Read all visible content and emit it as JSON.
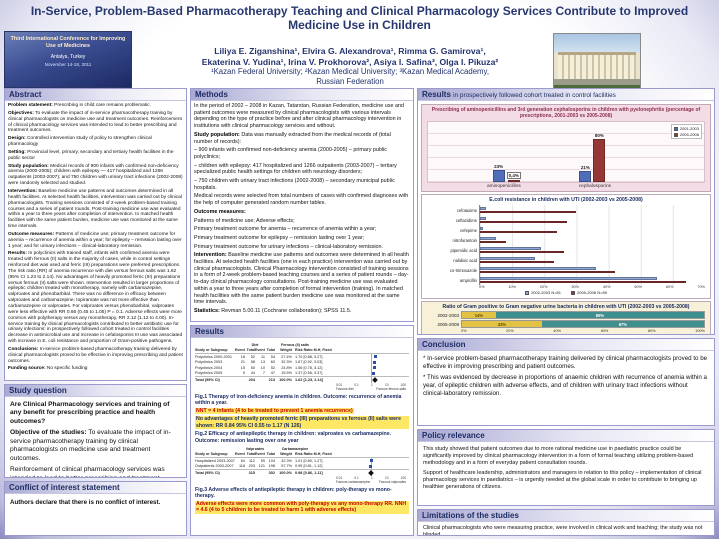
{
  "title": "In-Service, Problem-Based Pharmacotherapy Teaching and Clinical Pharmacology Services Contribute to Improved Medicine Use in Children",
  "badge": {
    "line1": "Third International Conference for Improving Use of Medicines",
    "line2": "Antalya, Turkey",
    "line3": "November 14-18, 2011"
  },
  "authors": {
    "line1": "Liliya E. Ziganshina¹, Elvira G. Alexandrova¹, Rimma G. Gamirova¹,",
    "line2": "Ekaterina V. Yudina¹, Irina V. Prokhorova², Asiya I. Safina³, Olga I. Pikuza²",
    "line3": "¹Kazan Federal University; ²Kazan Medical University; ³Kazan Medical Academy,",
    "line4": "Russian Federation"
  },
  "abstract": {
    "header": "Abstract",
    "items": [
      {
        "label": "Problem statement:",
        "text": "Prescribing in child care remains problematic."
      },
      {
        "label": "Objectives:",
        "text": "To evaluate the impact of in-service pharmacotherapy training by clinical pharmacologists on medicine use and treatment outcomes. Reinforcement of clinical pharmacology services was intended to lead to better prescribing and treatment outcomes."
      },
      {
        "label": "Design:",
        "text": "Controlled intervention study of policy to strengthen clinical pharmacology"
      },
      {
        "label": "Setting:",
        "text": "Provincial level, primary, secondary and tertiary health facilities in the public sector"
      },
      {
        "label": "Study population:",
        "text": "Medical records of 900 infants with confirmed non-deficiency anemia (2000-2005); children with epilepsy — 417 hospitalized and 1266 outpatients (2003-2007); and 750 children with urinary tract infections (2002-2008) were randomly selected and studied."
      },
      {
        "label": "Intervention:",
        "text": "Baseline medicine use patterns and outcomes determined in all health facilities. At selected health facilities, intervention was carried out by clinical pharmacologists. Training sessions consisted of 2-week problem-based training courses and a series of patient rounds. Post-training medicine use was evaluated within a year to three years after completion of intervention. In matched health facilities with the same patient burden, medicine use was monitored at the same time intervals."
      },
      {
        "label": "Outcome measures:",
        "text": "Patterns of medicine use; primary treatment outcome for anemia – recurrence of anemia within a year; for epilepsy – remission lasting over 1 year; and for urinary infections – clinical-laboratory remission."
      },
      {
        "label": "Results:",
        "text": "In polyclinics with trained staff, infants with confirmed anemia were treated with ferrous (II) salts in the majority of cases, while in control settings reinforced diet was used and ferric (III) preparations were preferred prescriptions. The risk ratio (RR) of anemia recurrence with diet versus ferrous salts was 1.62 (95% CI 1.23 to 2.14). No advantages of heavily promoted ferric (III) preparations versus ferrous (II) salts were shown. Intervention resulted in larger proportions of epileptic children treated with monotherapy, namely with carbamazepine, valproates and phenobarbital. There was no difference in efficacy between valproates and carbamazepine; topiramate was not more effective than carbamazepine or valproates. For valproates versus phenobarbital, valproates were less effective with RR 0.66 (0.45 to 1.05) P = 0.1. Adverse effects were more common with polytherapy versus any monotherapy, RR 2.12 (1.12 to 4.00). In-service training by clinical pharmacologists contributed to better antibiotic use for urinary infections: in prospectively followed cohort treated in control facilities decrease in antimicrobial use and increase in cefalosporins III use was associated with increase in E. coli resistance and proportion of Gram-positive pathogens."
      },
      {
        "label": "Conclusions:",
        "text": "In-service problem-based pharmacotherapy training delivered by clinical pharmacologists proved to be effective in improving prescribing and patient outcomes."
      },
      {
        "label": "Funding source:",
        "text": "No specific funding"
      }
    ]
  },
  "study_question": {
    "header": "Study question",
    "q": "Are Clinical Pharmacology services and training of any benefit for prescribing practice and health outcomes?",
    "objective_label": "Objective of the studies:",
    "objective": "To evaluate the impact of in-service pharmacotherapy training by clinical pharmacologists on medicine use and treatment outcomes.",
    "note": "Reinforcement of clinical pharmacology services was intended to lead to better prescribing and treatment outcomes."
  },
  "conflict": {
    "header": "Conflict of interest statement",
    "text": "Authors declare that there is no conflict of interest."
  },
  "methods": {
    "header": "Methods",
    "items": [
      {
        "label": "",
        "text": "In the period of 2002 – 2008 in Kazan, Tatarstan, Russian Federation, medicine use and patient outcomes were measured by clinical pharmacologists with various intervals depending on the type of practice before and after clinical pharmacology intervention in institutions with clinical pharmacology services and without."
      },
      {
        "label": "Study population:",
        "text": "Data was manually extracted from the medical records of (total number of records):"
      },
      {
        "label": "",
        "text": "– 900 infants with confirmed non-deficiency anemia (2000-2005) – primary public polyclinics;"
      },
      {
        "label": "",
        "text": "– children with epilepsy: 417 hospitalized and 1266 outpatients (2003-2007) – tertiary specialized public health settings for children with neurology disorders;"
      },
      {
        "label": "",
        "text": "– 750 children with urinary tract infections (2002-2008) – secondary municipal public hospitals."
      },
      {
        "label": "",
        "text": "Medical records were selected from total numbers of cases with confirmed diagnoses with the help of computer generated random number tables."
      },
      {
        "label": "Outcome measures:",
        "text": ""
      },
      {
        "label": "",
        "text": "Patterns of medicine use; Adverse effects;"
      },
      {
        "label": "",
        "text": "Primary treatment outcome for anemia – recurrence of anemia within a year;"
      },
      {
        "label": "",
        "text": "Primary treatment outcome for epilepsy – remission lasting over 1 year;"
      },
      {
        "label": "",
        "text": "Primary treatment outcome for urinary infections – clinical-laboratory remission."
      },
      {
        "label": "Intervention:",
        "text": "Baseline medicine use patterns and outcomes were determined in all health facilities. At selected health facilities (one in each practice) intervention was carried out by clinical pharmacologists. Clinical Pharmacology intervention consisted of training sessions in a form of 2-week problem-based teaching courses and a series of patient rounds – day-to-day clinical pharmacology consultations. Post-training medicine use was evaluated within a year to three years after completion of formal intervention (training). In matched health facilities with the same patient burden medicine use was monitored at the same time intervals."
      },
      {
        "label": "Statistics:",
        "text": "Revman 5.00.11 (Cochrane collaboration); SPSS 11.5."
      }
    ]
  },
  "results_mid": {
    "header": "Results",
    "figures": [
      {
        "id": "fig1",
        "group_left": "Diet",
        "group_right": "Ferrous (II) salts",
        "col_headers": [
          "Study or Subgroup",
          "Events",
          "Total",
          "Events",
          "Total",
          "Weight",
          "Risk Ratio M-H, Fixed, 95% CI"
        ],
        "rows": [
          {
            "label": "Polyclinics 2000-2001",
            "e1": "18",
            "t1": "52",
            "e2": "11",
            "t2": "54",
            "weight": "27.4%",
            "rr_text": "1.70 [0.88, 3.27]",
            "rr": 1.7
          },
          {
            "label": "Polyclinics 2003",
            "e1": "21",
            "t1": "58",
            "e2": "13",
            "t2": "60",
            "weight": "32.3%",
            "rr_text": "1.67 [0.92, 3.03]",
            "rr": 1.67
          },
          {
            "label": "Polyclinics 2004",
            "e1": "15",
            "t1": "50",
            "e2": "10",
            "t2": "52",
            "weight": "24.8%",
            "rr_text": "1.56 [0.78, 3.12]",
            "rr": 1.56
          },
          {
            "label": "Polyclinics 2005",
            "e1": "9",
            "t1": "44",
            "e2": "7",
            "t2": "47",
            "weight": "15.5%",
            "rr_text": "1.37 [0.56, 3.37]",
            "rr": 1.37
          }
        ],
        "total": {
          "label": "Total (95% CI)",
          "t1": "204",
          "t2": "213",
          "weight": "100.0%",
          "rr_text": "1.62 [1.23, 2.14]",
          "rr": 1.62
        },
        "axis_labels": [
          "0.01",
          "0.1",
          "1",
          "10",
          "100"
        ],
        "favours_left": "Favours diet",
        "favours_right": "Favours ferrous salts",
        "caption": "Fig.1 Therapy of iron-deficiency anemia in children. Outcome: recurrence of anemia within a year.",
        "caption_hl": "NNT = 4 infants (4 to be treated to prevent 1 anemia recurrence)",
        "note": "No advantages of heavily promoted ferric (III) preparations vs ferrous (II) salts were shown: RR 0.84 95% CI 0.55 to 1.17 (N 126)"
      },
      {
        "id": "fig2",
        "pre_caption": "Fig.2 Efficacy of antiepileptic therapy in children: valproates vs carbamazepine. Outcome: remission lasting over one year",
        "group_left": "Valproates",
        "group_right": "Carbamazepine",
        "col_headers": [
          "Study or Subgroup",
          "Events",
          "Total",
          "Events",
          "Total",
          "Weight",
          "Risk Ratio M-H, Fixed, 95% CI"
        ],
        "rows": [
          {
            "label": "Hospitalized 2003-2007",
            "e1": "64",
            "t1": "112",
            "e2": "59",
            "t2": "104",
            "weight": "42.3%",
            "rr_text": "1.01 [0.80, 1.27]",
            "rr": 1.01
          },
          {
            "label": "Outpatients 2003-2007",
            "e1": "118",
            "t1": "203",
            "e2": "121",
            "t2": "198",
            "weight": "57.7%",
            "rr_text": "0.95 [0.81, 1.12]",
            "rr": 0.95
          }
        ],
        "total": {
          "label": "Total (95% CI)",
          "t1": "315",
          "t2": "302",
          "weight": "100.0%",
          "rr_text": "0.98 [0.86, 1.11]",
          "rr": 0.98
        },
        "axis_labels": [
          "0.01",
          "0.1",
          "1",
          "10",
          "100"
        ],
        "favours_left": "Favours carbamazepine",
        "favours_right": "Favours valproates"
      },
      {
        "id": "fig3",
        "caption": "Fig.3 Adverse effects of antiepileptic therapy in children: poly-therapy vs mono-therapy.",
        "caption_hl": "Adverse effects were more common with poly-therapy vs any mono-therapy RR. NNH = 4.6 (4 to 5 children to be treated to harm 1 with adverse effects)"
      }
    ]
  },
  "results_right": {
    "header_strong": "Results",
    "header_rest": "in prospectively followed cohort treated in control facilities"
  },
  "conclusion": {
    "header": "Conclusion",
    "items": [
      "* In-service problem-based pharmacotherapy training delivered by clinical pharmacologists proved to be effective in improving prescribing and patient outcomes.",
      "* This was evidenced by decrease in proportions of anaemic children with recurrence of anemia within a year, of epileptic children with adverse effects, and of children with urinary tract infections without clinical-laboratory remission."
    ]
  },
  "policy": {
    "header": "Policy relevance",
    "items": [
      "This study showed that patient outcomes due to more rational medicine use in paediatric practice could be significantly improved by clinical pharmacology intervention in a form of formal teaching utilizing problem-based methodology and in a form of everyday patient consultation rounds.",
      "Support of healthcare leadership, administrators and managers in relation to this policy – implementation of clinical pharmacology services in paediatrics – is urgently needed at the global scale in order to contribute to bringing up healthier generations of citizens."
    ]
  },
  "limitations": {
    "header": "Limitations of the studies",
    "text": "Clinical pharmacologists who were measuring practice, were involved in clinical work and teaching; the study was not blinded."
  },
  "chart_data": [
    {
      "name": "prescribing-pyelonephritis",
      "type": "bar",
      "title": "Prescribing of aminopenicillins and 3rd generation cephalosporins in children with pyelonephritis (percentage of prescriptions, 2001-2003 vs 2005-2008)",
      "categories": [
        "aminopenicillins",
        "cephalosporins"
      ],
      "series": [
        {
          "name": "2001-2003",
          "color": "#4f6db8",
          "values": [
            23,
            21
          ],
          "labels": [
            "23%",
            "21%"
          ]
        },
        {
          "name": "2005-2008",
          "color": "#953735",
          "values": [
            0.4,
            80
          ],
          "labels": [
            "0,4%",
            "80%"
          ]
        }
      ],
      "boxed_label": "0,4%",
      "ylim": [
        0,
        100
      ],
      "grid": true,
      "legend_position": "top-right"
    },
    {
      "name": "ecoli-resistance",
      "type": "bar-horizontal",
      "title": "E.coli resistance in children with UTI (2002-2003 vs 2005-2008)",
      "categories": [
        "cefotaxime",
        "ceftazidime",
        "cefepime",
        "nitrofurantoin",
        "pipemidic acid",
        "nalidixic acid",
        "co-trimoxazole",
        "ampicillin"
      ],
      "series": [
        {
          "name": "2002-2003",
          "n": "N=81",
          "color": "#8fa8d8",
          "values": [
            2,
            2,
            1,
            5,
            19,
            17,
            36,
            55
          ]
        },
        {
          "name": "2005-2008",
          "n": "N=89",
          "color": "#953735",
          "values": [
            30,
            27,
            24,
            8,
            26,
            23,
            42,
            64
          ]
        }
      ],
      "xlim": [
        0,
        70
      ],
      "xticks": [
        "0%",
        "10%",
        "20%",
        "30%",
        "40%",
        "50%",
        "60%",
        "70%"
      ],
      "grid": true,
      "legend_position": "bottom"
    },
    {
      "name": "gram-ratio",
      "type": "stacked-bar-horizontal",
      "title": "Ratio of Gram positive to Gram negative urine bacteria in children with UTI (2002-2003 vs 2005-2008)",
      "categories": [
        "2002-2003",
        "2005-2008"
      ],
      "series": [
        {
          "name": "Gram positive",
          "color": "#e3c243",
          "values": [
            14,
            33
          ]
        },
        {
          "name": "Gram negative",
          "color": "#3f8f8f",
          "values": [
            86,
            67
          ]
        }
      ],
      "xlim": [
        0,
        100
      ],
      "xticks": [
        "0%",
        "20%",
        "40%",
        "60%",
        "80%",
        "100%"
      ],
      "legend_position": "bottom"
    }
  ]
}
